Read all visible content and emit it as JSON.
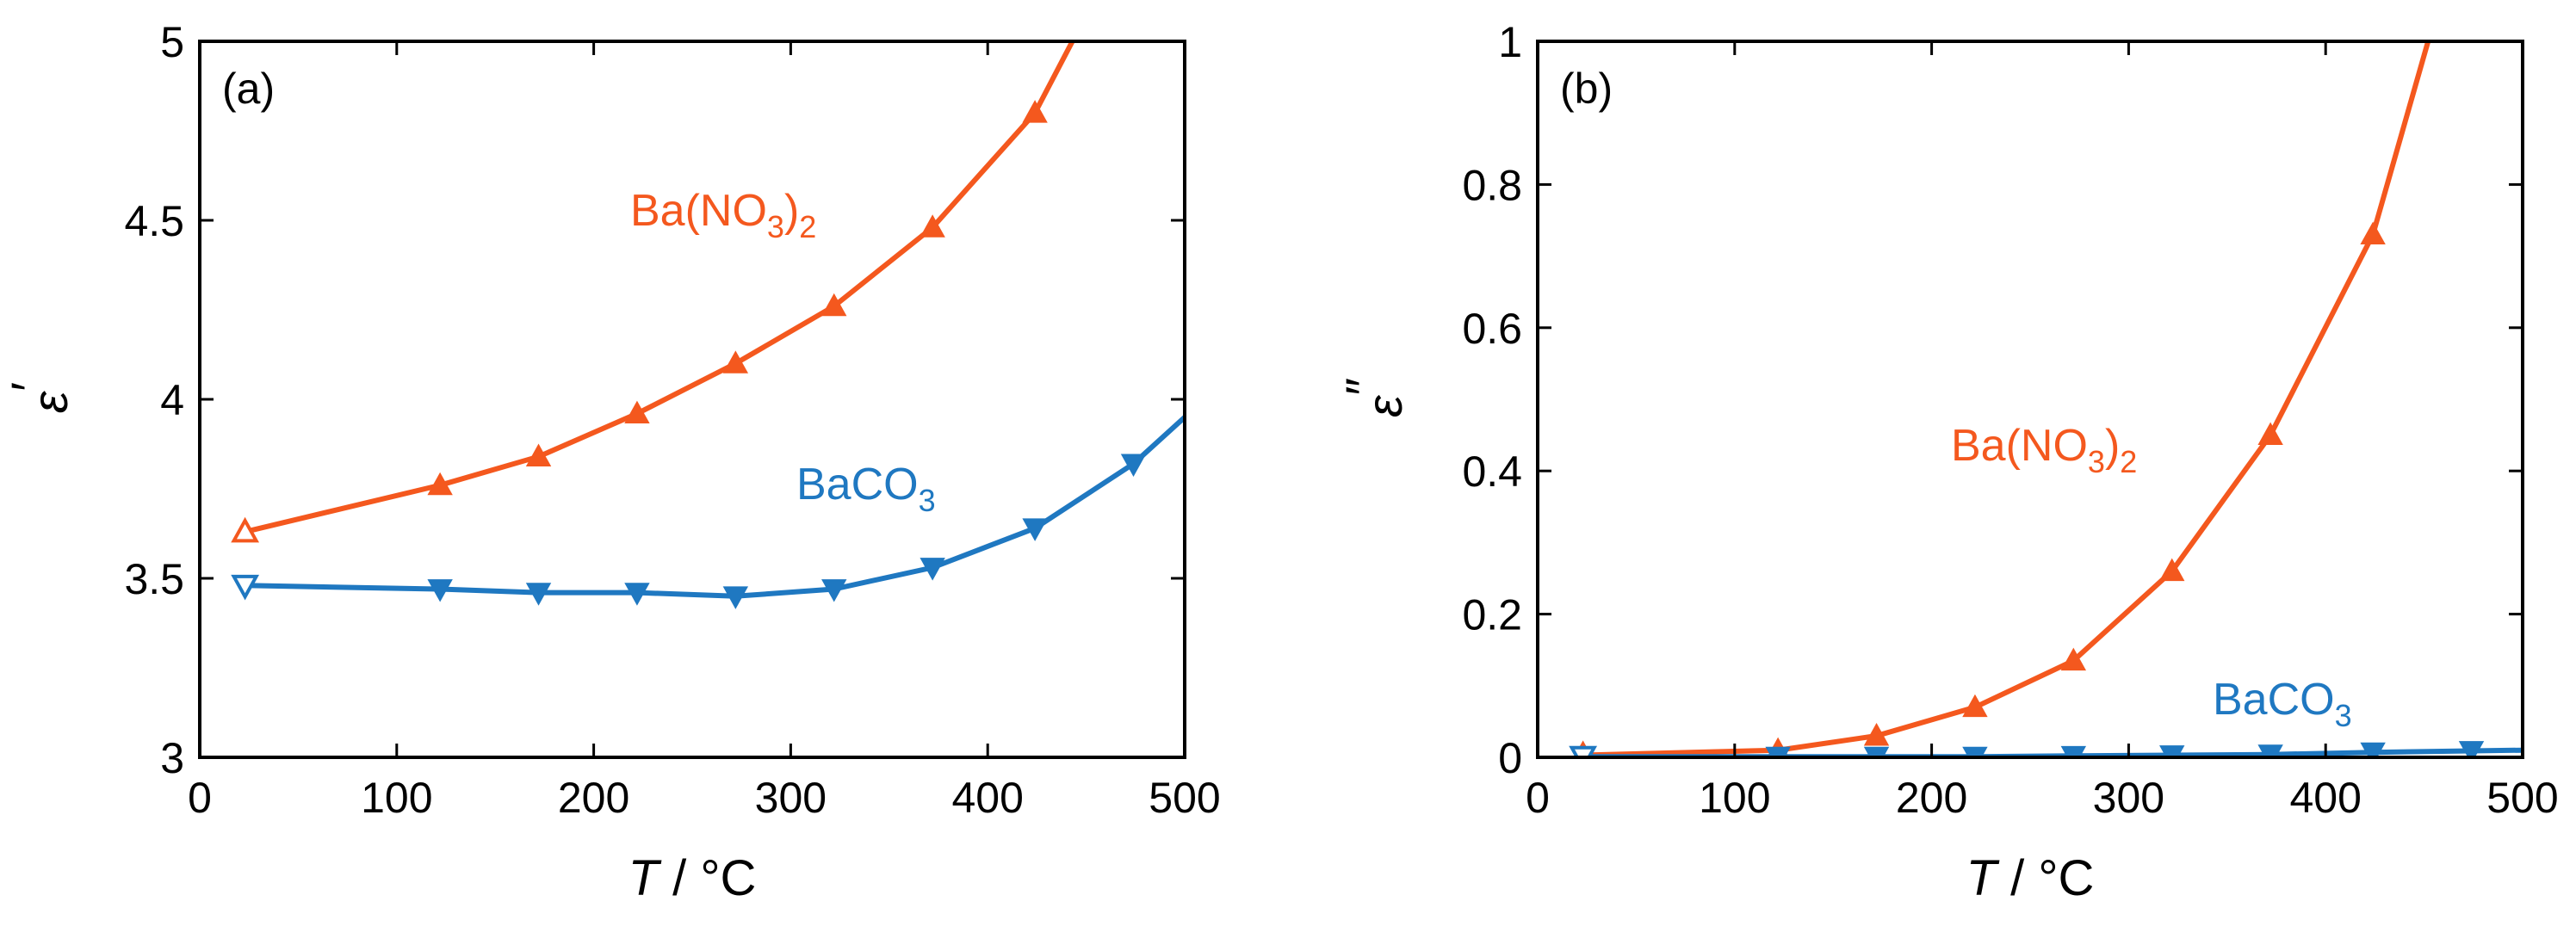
{
  "colors": {
    "nitrate": "#f4581e",
    "carbonate": "#1f78c1",
    "axis": "#000000"
  },
  "chart_data": [
    {
      "type": "line",
      "panel_label": "(a)",
      "xlabel_italic": "T",
      "xlabel_rest": " / °C",
      "ylabel": "ε",
      "ylabel_prime": "′",
      "xlim": [
        0,
        500
      ],
      "ylim": [
        3,
        5
      ],
      "xticks": [
        0,
        100,
        200,
        300,
        400,
        500
      ],
      "xtick_labels": [
        "0",
        "100",
        "200",
        "300",
        "400",
        "500"
      ],
      "yticks": [
        3,
        3.5,
        4,
        4.5,
        5
      ],
      "ytick_labels": [
        "3",
        "3.5",
        "4",
        "4.5",
        "5"
      ],
      "series": [
        {
          "name": "Ba(NO3)2",
          "label_main": "Ba(NO",
          "label_sub": "3",
          "label_close": ")",
          "label_sub2": "2",
          "color_key": "nitrate",
          "marker": "triangle-up",
          "x": [
            23,
            122,
            172,
            222,
            272,
            322,
            372,
            424
          ],
          "y": [
            3.63,
            3.76,
            3.84,
            3.96,
            4.1,
            4.26,
            4.48,
            4.8
          ],
          "tail": [
            [
              424,
              4.8
            ],
            [
              443,
              5.0
            ]
          ]
        },
        {
          "name": "BaCO3",
          "label_main": "BaCO",
          "label_sub": "3",
          "label_close": "",
          "label_sub2": "",
          "color_key": "carbonate",
          "marker": "triangle-down",
          "x": [
            23,
            122,
            172,
            222,
            272,
            322,
            372,
            424,
            474
          ],
          "y": [
            3.48,
            3.47,
            3.46,
            3.46,
            3.45,
            3.47,
            3.53,
            3.64,
            3.82
          ],
          "tail": [
            [
              474,
              3.82
            ],
            [
              500,
              3.95
            ]
          ]
        }
      ]
    },
    {
      "type": "line",
      "panel_label": "(b)",
      "xlabel_italic": "T",
      "xlabel_rest": " / °C",
      "ylabel": "ε",
      "ylabel_prime": "″",
      "xlim": [
        0,
        500
      ],
      "ylim": [
        0,
        1
      ],
      "xticks": [
        0,
        100,
        200,
        300,
        400,
        500
      ],
      "xtick_labels": [
        "0",
        "100",
        "200",
        "300",
        "400",
        "500"
      ],
      "yticks": [
        0,
        0.2,
        0.4,
        0.6,
        0.8,
        1
      ],
      "ytick_labels": [
        "0",
        "0.2",
        "0.4",
        "0.6",
        "0.8",
        "1"
      ],
      "series": [
        {
          "name": "Ba(NO3)2",
          "label_main": "Ba(NO",
          "label_sub": "3",
          "label_close": ")",
          "label_sub2": "2",
          "color_key": "nitrate",
          "marker": "triangle-up",
          "x": [
            23,
            122,
            172,
            222,
            272,
            322,
            372,
            424
          ],
          "y": [
            0.003,
            0.01,
            0.03,
            0.07,
            0.135,
            0.26,
            0.45,
            0.73
          ],
          "tail": [
            [
              424,
              0.73
            ],
            [
              452,
              1.0
            ]
          ]
        },
        {
          "name": "BaCO3",
          "label_main": "BaCO",
          "label_sub": "3",
          "label_close": "",
          "label_sub2": "",
          "color_key": "carbonate",
          "marker": "triangle-down",
          "x": [
            23,
            122,
            172,
            222,
            272,
            322,
            372,
            424,
            474
          ],
          "y": [
            0.001,
            0.001,
            0.001,
            0.001,
            0.002,
            0.003,
            0.004,
            0.007,
            0.009
          ],
          "tail": [
            [
              474,
              0.009
            ],
            [
              500,
              0.01
            ]
          ]
        }
      ]
    }
  ]
}
